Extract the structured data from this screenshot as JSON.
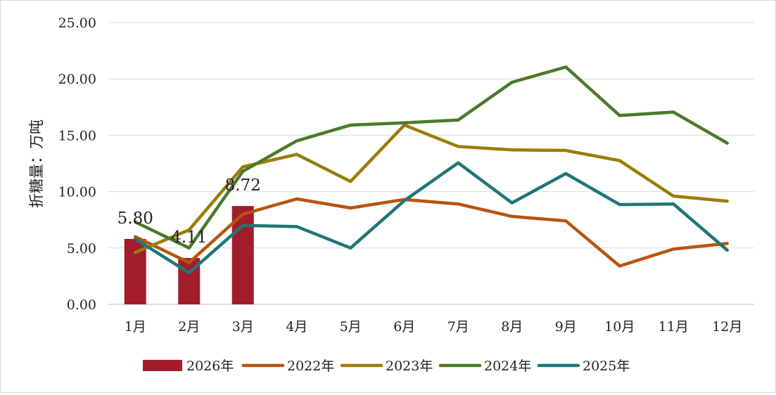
{
  "chart_data": {
    "type": "bar+line",
    "ylabel": "折糖量：万吨",
    "ylim": [
      0,
      25
    ],
    "yticks": [
      "0.00",
      "5.00",
      "10.00",
      "15.00",
      "20.00",
      "25.00"
    ],
    "categories": [
      "1月",
      "2月",
      "3月",
      "4月",
      "5月",
      "6月",
      "7月",
      "8月",
      "9月",
      "10月",
      "11月",
      "12月"
    ],
    "grid": "horizontal",
    "legend_position": "bottom",
    "bar_series": {
      "name": "2026年",
      "color": "#a31c2c",
      "values": [
        5.8,
        4.11,
        8.72
      ],
      "labels": [
        "5.80",
        "4.11",
        "8.72"
      ]
    },
    "series": [
      {
        "name": "2022年",
        "color": "#b8540e",
        "values": [
          6.0,
          3.7,
          8.0,
          9.35,
          8.55,
          9.3,
          8.9,
          7.8,
          7.4,
          3.4,
          4.9,
          5.4
        ]
      },
      {
        "name": "2023年",
        "color": "#9c7c08",
        "values": [
          4.6,
          6.6,
          12.2,
          13.3,
          10.9,
          15.9,
          14.0,
          13.7,
          13.65,
          12.75,
          9.6,
          9.15
        ]
      },
      {
        "name": "2024年",
        "color": "#4b7a2a",
        "values": [
          7.3,
          5.0,
          11.8,
          14.5,
          15.9,
          16.1,
          16.35,
          19.7,
          21.05,
          16.75,
          17.05,
          14.3
        ]
      },
      {
        "name": "2025年",
        "color": "#207575",
        "values": [
          5.8,
          2.8,
          7.0,
          6.9,
          5.0,
          9.2,
          12.55,
          9.0,
          11.6,
          8.85,
          8.9,
          4.8
        ]
      }
    ]
  }
}
